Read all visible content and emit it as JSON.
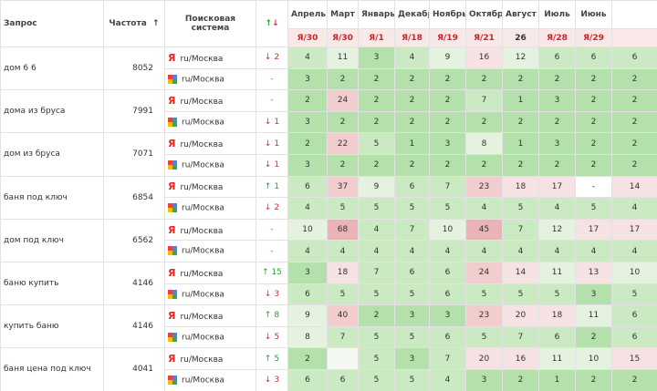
{
  "table": {
    "header": {
      "query": "Запрос",
      "frequency": "Частота",
      "sort_icon": "↑",
      "engine": "Поисковая система",
      "change_up": "↑",
      "change_down": "↓"
    },
    "yandex_icon": "Я",
    "months": [
      {
        "name": "Апрель",
        "sub": "Я/30"
      },
      {
        "name": "Март",
        "sub": "Я/30"
      },
      {
        "name": "Январь",
        "sub": "Я/1"
      },
      {
        "name": "Декабрь",
        "sub": "Я/18"
      },
      {
        "name": "Ноябрь",
        "sub": "Я/19"
      },
      {
        "name": "Октябрь",
        "sub": "Я/21"
      },
      {
        "name": "Август",
        "sub": "26"
      },
      {
        "name": "Июль",
        "sub": "Я/28"
      },
      {
        "name": "Июнь",
        "sub": "Я/29"
      }
    ],
    "rows": [
      {
        "query": "дом 6 6",
        "frequency": 8052,
        "engines": [
          {
            "region": "ru/Москва",
            "change": "↓ 2",
            "values": [
              4,
              11,
              3,
              4,
              9,
              16,
              12,
              6,
              6,
              6
            ]
          },
          {
            "region": "ru/Москва",
            "change": "-",
            "values": [
              3,
              2,
              2,
              2,
              2,
              2,
              2,
              2,
              2,
              2
            ]
          }
        ]
      },
      {
        "query": "дома из бруса",
        "frequency": 7991,
        "engines": [
          {
            "region": "ru/Москва",
            "change": "-",
            "values": [
              2,
              24,
              2,
              2,
              2,
              7,
              1,
              3,
              2,
              2
            ]
          },
          {
            "region": "ru/Москва",
            "change": "↓ 1",
            "values": [
              3,
              2,
              2,
              2,
              2,
              2,
              2,
              2,
              2,
              2
            ]
          }
        ]
      },
      {
        "query": "дом из бруса",
        "frequency": 7071,
        "engines": [
          {
            "region": "ru/Москва",
            "change": "↓ 1",
            "values": [
              2,
              22,
              5,
              1,
              3,
              8,
              1,
              3,
              2,
              2
            ]
          },
          {
            "region": "ru/Москва",
            "change": "↓ 1",
            "values": [
              3,
              2,
              2,
              2,
              2,
              2,
              2,
              2,
              2,
              2
            ]
          }
        ]
      },
      {
        "query": "баня под ключ",
        "frequency": 6854,
        "engines": [
          {
            "region": "ru/Москва",
            "change": "↑ 1",
            "values": [
              6,
              37,
              9,
              6,
              7,
              23,
              18,
              17,
              "-",
              14
            ]
          },
          {
            "region": "ru/Москва",
            "change": "↓ 2",
            "values": [
              4,
              5,
              5,
              5,
              5,
              4,
              5,
              4,
              5,
              4
            ]
          }
        ]
      },
      {
        "query": "дом под ключ",
        "frequency": 6562,
        "engines": [
          {
            "region": "ru/Москва",
            "change": "-",
            "values": [
              10,
              68,
              4,
              7,
              10,
              45,
              7,
              12,
              17,
              17
            ]
          },
          {
            "region": "ru/Москва",
            "change": "-",
            "values": [
              4,
              4,
              4,
              4,
              4,
              4,
              4,
              4,
              4,
              4
            ]
          }
        ]
      },
      {
        "query": "баню купить",
        "frequency": 4146,
        "engines": [
          {
            "region": "ru/Москва",
            "change": "↑ 15",
            "values": [
              3,
              18,
              7,
              6,
              6,
              24,
              14,
              11,
              13,
              10
            ]
          },
          {
            "region": "ru/Москва",
            "change": "↓ 3",
            "values": [
              6,
              5,
              5,
              5,
              6,
              5,
              5,
              5,
              3,
              5
            ]
          }
        ]
      },
      {
        "query": "купить баню",
        "frequency": 4146,
        "engines": [
          {
            "region": "ru/Москва",
            "change": "↑ 8",
            "values": [
              9,
              40,
              2,
              3,
              3,
              23,
              20,
              18,
              11,
              6
            ]
          },
          {
            "region": "ru/Москва",
            "change": "↓ 5",
            "values": [
              8,
              7,
              5,
              5,
              6,
              5,
              7,
              6,
              2,
              6
            ]
          }
        ]
      },
      {
        "query": "баня цена под ключ",
        "frequency": 4041,
        "engines": [
          {
            "region": "ru/Москва",
            "change": "↑ 5",
            "values": [
              2,
              null,
              5,
              3,
              7,
              20,
              16,
              11,
              10,
              15
            ]
          },
          {
            "region": "ru/Москва",
            "change": "↓ 3",
            "values": [
              6,
              6,
              5,
              5,
              4,
              3,
              2,
              1,
              2,
              2
            ]
          }
        ]
      }
    ]
  }
}
